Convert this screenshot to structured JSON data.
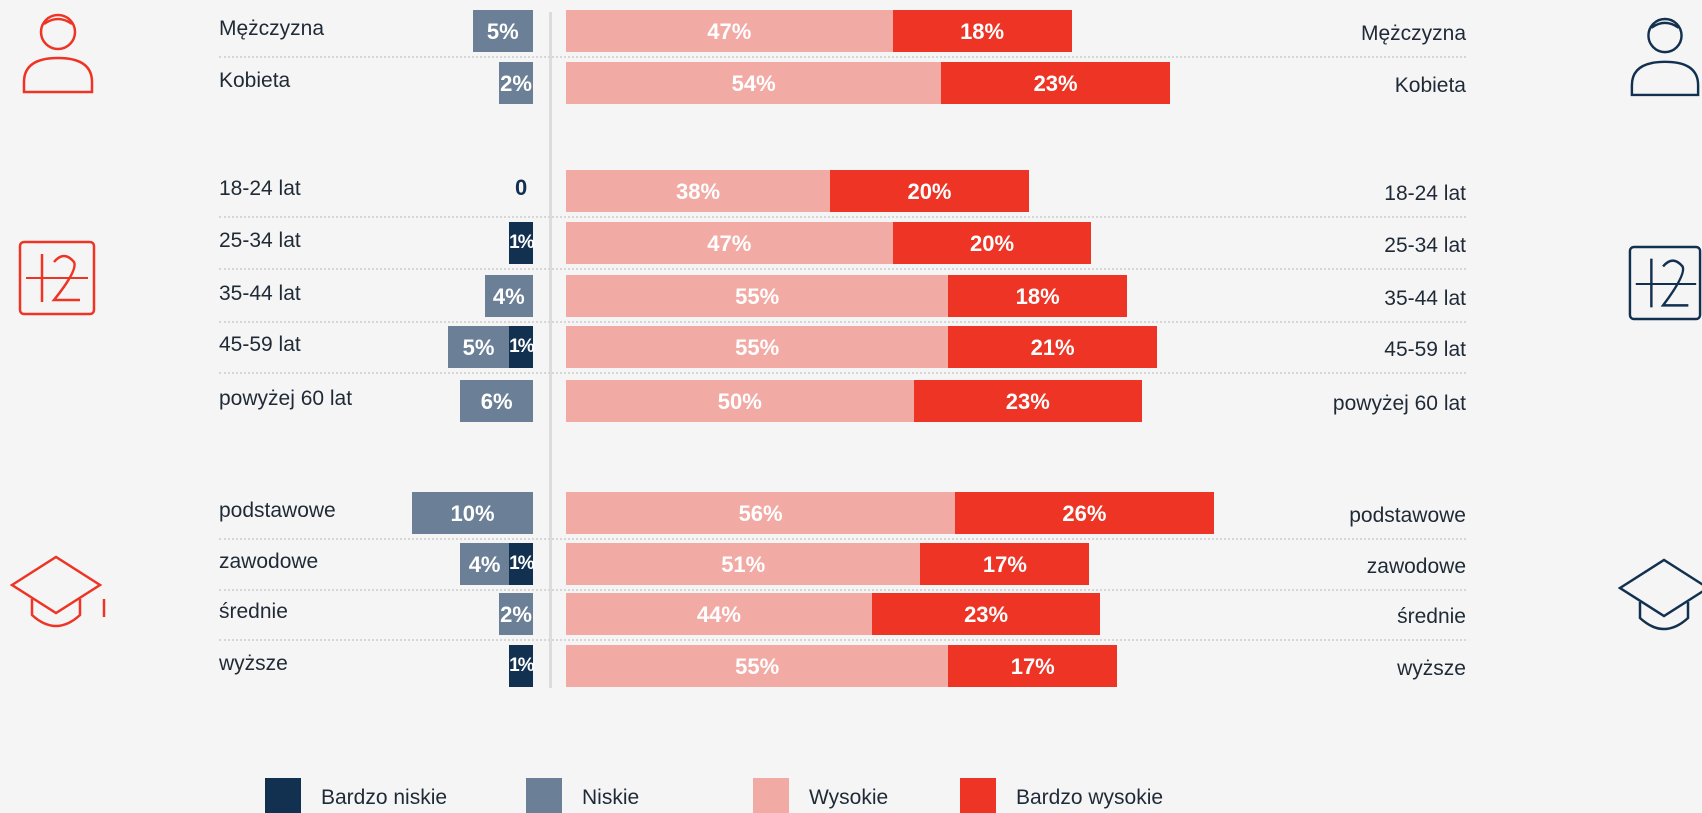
{
  "colors": {
    "bardzo_niskie": "#12304f",
    "niskie": "#6b8096",
    "wysokie": "#f2aaa4",
    "bardzo_wysokie": "#ee3424",
    "icon_left": "#ee3424",
    "icon_right": "#12304f"
  },
  "icons": {
    "gender": "person-icon",
    "age": "calendar-12-icon",
    "education": "graduation-cap-icon"
  },
  "legend": [
    {
      "key": "bardzo_niskie",
      "label": "Bardzo niskie"
    },
    {
      "key": "niskie",
      "label": "Niskie"
    },
    {
      "key": "wysokie",
      "label": "Wysokie"
    },
    {
      "key": "bardzo_wysokie",
      "label": "Bardzo wysokie"
    }
  ],
  "chart_data": {
    "type": "bar",
    "orientation": "horizontal diverging",
    "series": [
      {
        "name": "Bardzo niskie",
        "values": [
          null,
          null,
          0,
          1,
          null,
          1,
          null,
          null,
          1,
          null,
          1
        ]
      },
      {
        "name": "Niskie",
        "values": [
          5,
          2,
          null,
          null,
          4,
          5,
          6,
          10,
          4,
          2,
          null
        ]
      },
      {
        "name": "Wysokie",
        "values": [
          47,
          54,
          38,
          47,
          55,
          55,
          50,
          56,
          51,
          44,
          55
        ]
      },
      {
        "name": "Bardzo wysokie",
        "values": [
          18,
          23,
          20,
          20,
          18,
          21,
          23,
          26,
          17,
          23,
          17
        ]
      }
    ],
    "categories": [
      "Mężczyzna",
      "Kobieta",
      "18-24 lat",
      "25-34 lat",
      "35-44 lat",
      "45-59 lat",
      "powyżej 60 lat",
      "podstawowe",
      "zawodowe",
      "średnie",
      "wyższe"
    ],
    "rows": [
      {
        "label": "Mężczyzna",
        "group": "gender",
        "bardzo_niskie": null,
        "niskie": 5,
        "wysokie": 47,
        "bardzo_wysokie": 18,
        "text_bn": "",
        "text_n": "5%",
        "text_w": "47%",
        "text_bw": "18%"
      },
      {
        "label": "Kobieta",
        "group": "gender",
        "bardzo_niskie": null,
        "niskie": 2,
        "wysokie": 54,
        "bardzo_wysokie": 23,
        "text_bn": "",
        "text_n": "2%",
        "text_w": "54%",
        "text_bw": "23%"
      },
      {
        "label": "18-24 lat",
        "group": "age",
        "bardzo_niskie": 0,
        "niskie": null,
        "wysokie": 38,
        "bardzo_wysokie": 20,
        "text_bn": "0",
        "text_n": "",
        "text_w": "38%",
        "text_bw": "20%"
      },
      {
        "label": "25-34 lat",
        "group": "age",
        "bardzo_niskie": 1,
        "niskie": null,
        "wysokie": 47,
        "bardzo_wysokie": 20,
        "text_bn": "1%",
        "text_n": "",
        "text_w": "47%",
        "text_bw": "20%"
      },
      {
        "label": "35-44 lat",
        "group": "age",
        "bardzo_niskie": null,
        "niskie": 4,
        "wysokie": 55,
        "bardzo_wysokie": 18,
        "text_bn": "",
        "text_n": "4%",
        "text_w": "55%",
        "text_bw": "18%"
      },
      {
        "label": "45-59 lat",
        "group": "age",
        "bardzo_niskie": 1,
        "niskie": 5,
        "wysokie": 55,
        "bardzo_wysokie": 21,
        "text_bn": "1%",
        "text_n": "5%",
        "text_w": "55%",
        "text_bw": "21%"
      },
      {
        "label": "powyżej 60 lat",
        "group": "age",
        "bardzo_niskie": null,
        "niskie": 6,
        "wysokie": 50,
        "bardzo_wysokie": 23,
        "text_bn": "",
        "text_n": "6%",
        "text_w": "50%",
        "text_bw": "23%"
      },
      {
        "label": "podstawowe",
        "group": "education",
        "bardzo_niskie": null,
        "niskie": 10,
        "wysokie": 56,
        "bardzo_wysokie": 26,
        "text_bn": "",
        "text_n": "10%",
        "text_w": "56%",
        "text_bw": "26%"
      },
      {
        "label": "zawodowe",
        "group": "education",
        "bardzo_niskie": 1,
        "niskie": 4,
        "wysokie": 51,
        "bardzo_wysokie": 17,
        "text_bn": "1%",
        "text_n": "4%",
        "text_w": "51%",
        "text_bw": "17%"
      },
      {
        "label": "średnie",
        "group": "education",
        "bardzo_niskie": null,
        "niskie": 2,
        "wysokie": 44,
        "bardzo_wysokie": 23,
        "text_bn": "",
        "text_n": "2%",
        "text_w": "44%",
        "text_bw": "23%"
      },
      {
        "label": "wyższe",
        "group": "education",
        "bardzo_niskie": 1,
        "niskie": null,
        "wysokie": 55,
        "bardzo_wysokie": 17,
        "text_bn": "1%",
        "text_n": "",
        "text_w": "55%",
        "text_bw": "17%"
      }
    ],
    "legend_position": "bottom",
    "grid": false
  }
}
